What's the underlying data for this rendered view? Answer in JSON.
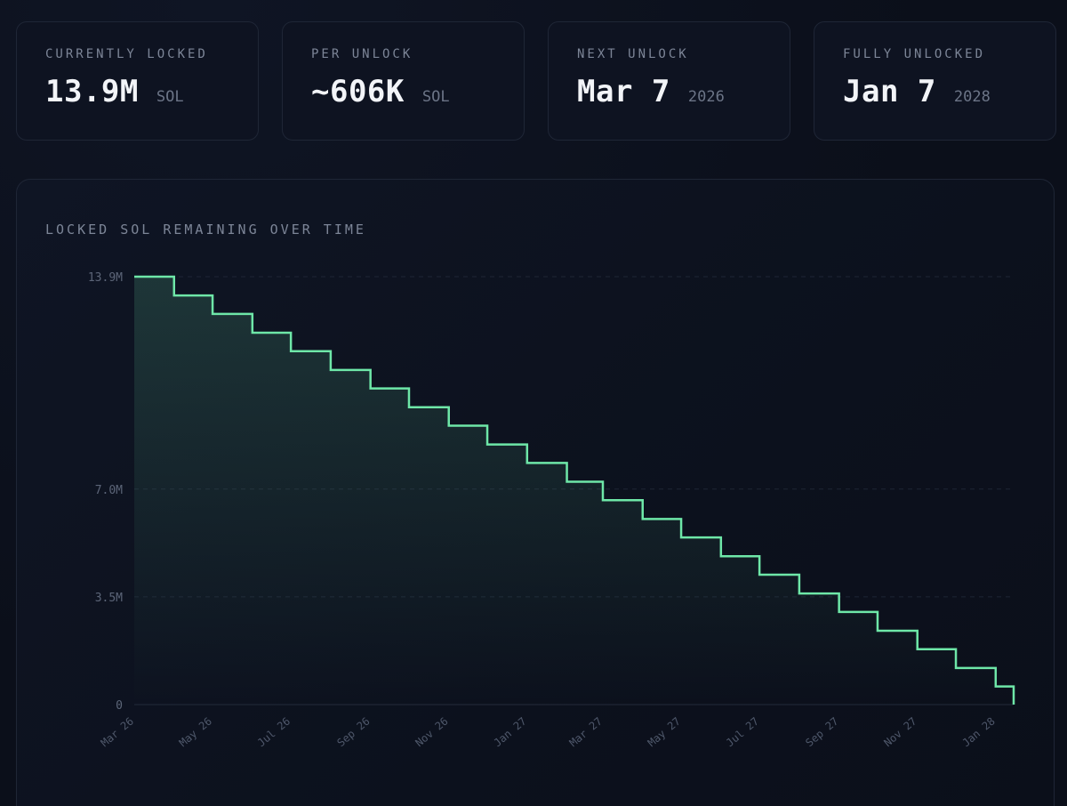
{
  "stats": [
    {
      "label": "CURRENTLY LOCKED",
      "value": "13.9M",
      "unit": "SOL"
    },
    {
      "label": "PER UNLOCK",
      "value": "~606K",
      "unit": "SOL"
    },
    {
      "label": "NEXT UNLOCK",
      "value": "Mar 7",
      "unit": "2026"
    },
    {
      "label": "FULLY UNLOCKED",
      "value": "Jan 7",
      "unit": "2028"
    }
  ],
  "chart_data": {
    "type": "area",
    "style": "step",
    "title": "LOCKED SOL REMAINING OVER TIME",
    "color": "#6ee7a8",
    "y_unit": "M SOL",
    "ylim": [
      0,
      13.9
    ],
    "yticks": [
      {
        "value": 0,
        "label": "0"
      },
      {
        "value": 3.5,
        "label": "3.5M"
      },
      {
        "value": 7.0,
        "label": "7.0M"
      },
      {
        "value": 13.9,
        "label": "13.9M"
      }
    ],
    "xlim": [
      "2026-03-07",
      "2028-01-07"
    ],
    "xticks": [
      {
        "date": "2026-03-07",
        "label": "Mar 26"
      },
      {
        "date": "2026-05-07",
        "label": "May 26"
      },
      {
        "date": "2026-07-07",
        "label": "Jul 26"
      },
      {
        "date": "2026-09-07",
        "label": "Sep 26"
      },
      {
        "date": "2026-11-07",
        "label": "Nov 26"
      },
      {
        "date": "2027-01-07",
        "label": "Jan 27"
      },
      {
        "date": "2027-03-07",
        "label": "Mar 27"
      },
      {
        "date": "2027-05-07",
        "label": "May 27"
      },
      {
        "date": "2027-07-07",
        "label": "Jul 27"
      },
      {
        "date": "2027-09-07",
        "label": "Sep 27"
      },
      {
        "date": "2027-11-07",
        "label": "Nov 27"
      },
      {
        "date": "2028-01-07",
        "label": "Jan 28"
      }
    ],
    "points": [
      {
        "x": "2026-03-07",
        "y": 13.9
      },
      {
        "x": "2026-04-07",
        "y": 13.29
      },
      {
        "x": "2026-05-07",
        "y": 12.69
      },
      {
        "x": "2026-06-07",
        "y": 12.08
      },
      {
        "x": "2026-07-07",
        "y": 11.48
      },
      {
        "x": "2026-08-07",
        "y": 10.87
      },
      {
        "x": "2026-09-07",
        "y": 10.27
      },
      {
        "x": "2026-10-07",
        "y": 9.66
      },
      {
        "x": "2026-11-07",
        "y": 9.06
      },
      {
        "x": "2026-12-07",
        "y": 8.45
      },
      {
        "x": "2027-01-07",
        "y": 7.85
      },
      {
        "x": "2027-02-07",
        "y": 7.24
      },
      {
        "x": "2027-03-07",
        "y": 6.64
      },
      {
        "x": "2027-04-07",
        "y": 6.03
      },
      {
        "x": "2027-05-07",
        "y": 5.43
      },
      {
        "x": "2027-06-07",
        "y": 4.82
      },
      {
        "x": "2027-07-07",
        "y": 4.22
      },
      {
        "x": "2027-08-07",
        "y": 3.61
      },
      {
        "x": "2027-09-07",
        "y": 3.01
      },
      {
        "x": "2027-10-07",
        "y": 2.4
      },
      {
        "x": "2027-11-07",
        "y": 1.8
      },
      {
        "x": "2027-12-07",
        "y": 1.19
      },
      {
        "x": "2028-01-07",
        "y": 0.59
      }
    ],
    "end": {
      "x": "2028-01-21",
      "y": 0
    }
  }
}
